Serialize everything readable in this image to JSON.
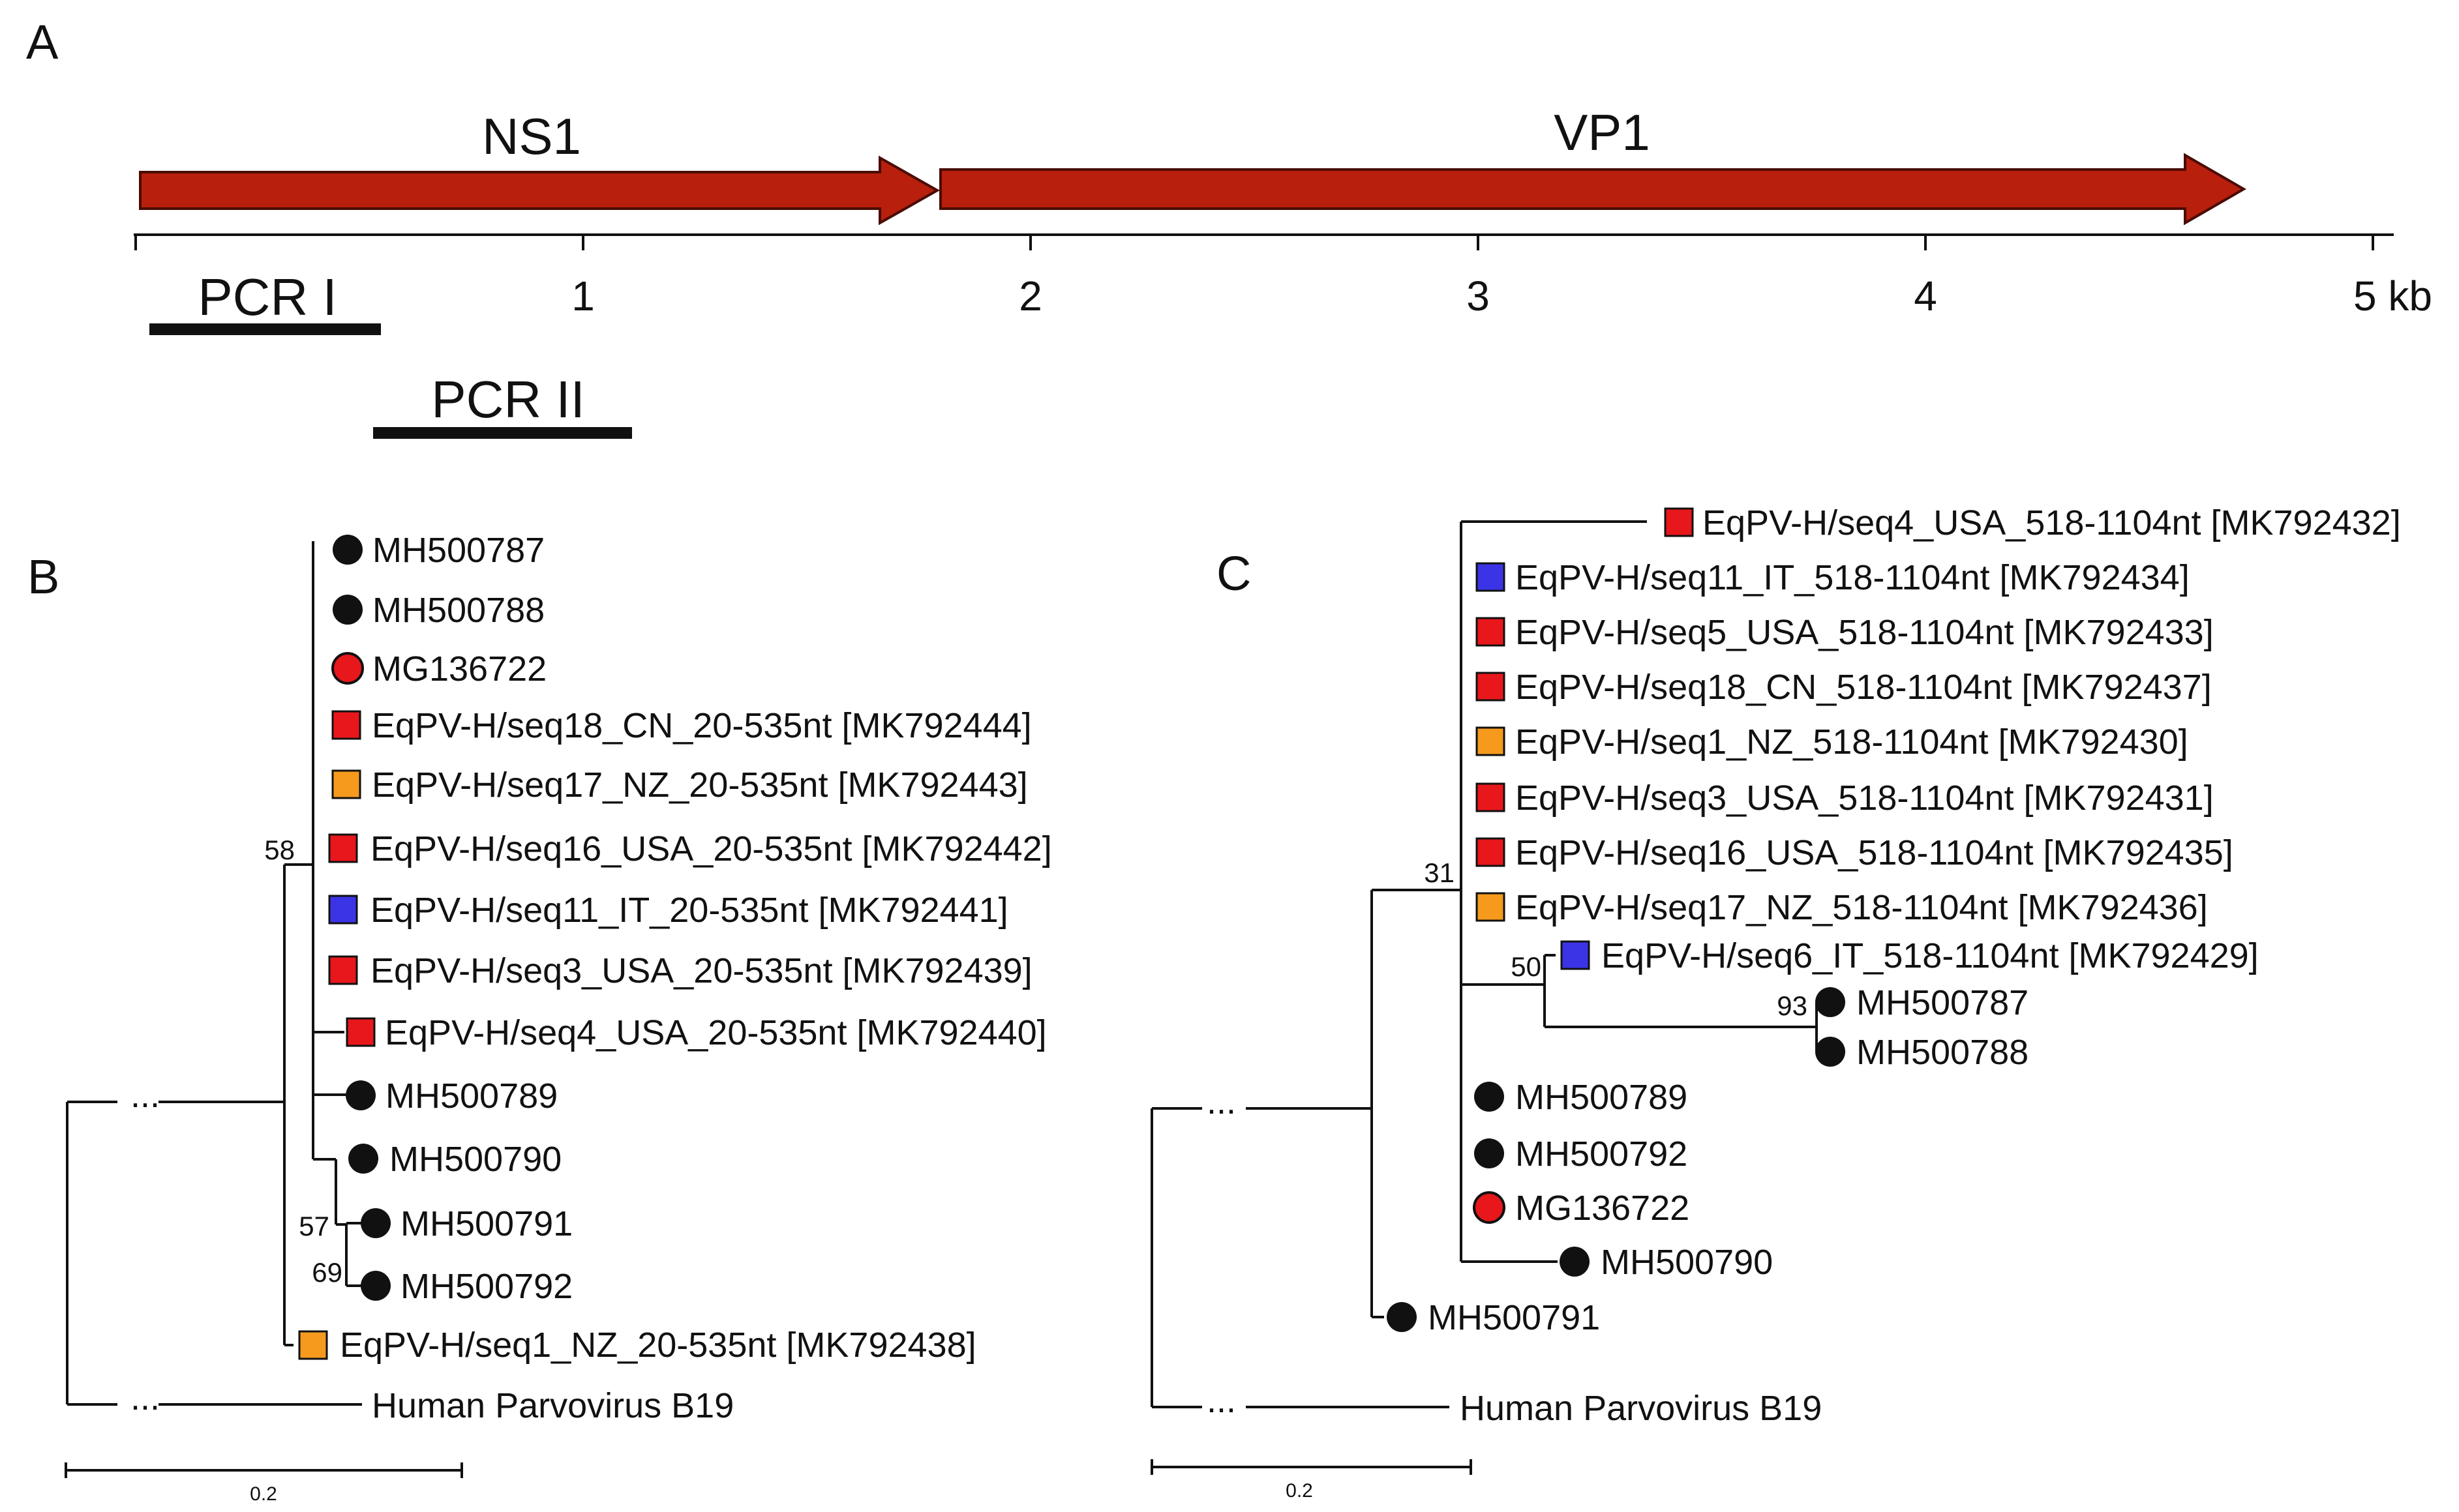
{
  "panels": {
    "a": "A",
    "b": "B",
    "c": "C"
  },
  "colors": {
    "gene": "#b81f0c",
    "red": "#e8171b",
    "orange": "#f59a1d",
    "blue": "#3b34e6",
    "black": "#111111"
  },
  "genome": {
    "genes": [
      {
        "label": "NS1",
        "start_kb": 0.02,
        "end_kb": 1.8
      },
      {
        "label": "VP1",
        "start_kb": 1.8,
        "end_kb": 4.75
      }
    ],
    "axis": {
      "min_kb": 0,
      "max_kb": 5,
      "tick_labels": [
        "1",
        "2",
        "3",
        "4",
        "5 kb"
      ]
    },
    "pcr": [
      {
        "label": "PCR I",
        "start_kb": 0.03,
        "end_kb": 0.55
      },
      {
        "label": "PCR II",
        "start_kb": 0.55,
        "end_kb": 1.1
      }
    ]
  },
  "tree_b": {
    "leaves": [
      {
        "label": "MH500787",
        "marker": "circle",
        "color": "#111111"
      },
      {
        "label": "MH500788",
        "marker": "circle",
        "color": "#111111"
      },
      {
        "label": "MG136722",
        "marker": "circle",
        "color": "#e8171b"
      },
      {
        "label": "EqPV-H/seq18_CN_20-535nt [MK792444]",
        "marker": "square",
        "color": "#e8171b"
      },
      {
        "label": "EqPV-H/seq17_NZ_20-535nt [MK792443]",
        "marker": "square",
        "color": "#f59a1d"
      },
      {
        "label": "EqPV-H/seq16_USA_20-535nt [MK792442]",
        "marker": "square",
        "color": "#e8171b"
      },
      {
        "label": "EqPV-H/seq11_IT_20-535nt [MK792441]",
        "marker": "square",
        "color": "#3b34e6"
      },
      {
        "label": "EqPV-H/seq3_USA_20-535nt [MK792439]",
        "marker": "square",
        "color": "#e8171b"
      },
      {
        "label": "EqPV-H/seq4_USA_20-535nt [MK792440]",
        "marker": "square",
        "color": "#e8171b"
      },
      {
        "label": "MH500789",
        "marker": "circle",
        "color": "#111111"
      },
      {
        "label": "MH500790",
        "marker": "circle",
        "color": "#111111"
      },
      {
        "label": "MH500791",
        "marker": "circle",
        "color": "#111111"
      },
      {
        "label": "MH500792",
        "marker": "circle",
        "color": "#111111"
      },
      {
        "label": "EqPV-H/seq1_NZ_20-535nt [MK792438]",
        "marker": "square",
        "color": "#f59a1d"
      },
      {
        "label": "Human Parvovirus B19",
        "marker": "none",
        "color": "#111111"
      }
    ],
    "bootstrap": [
      "58",
      "57",
      "69"
    ],
    "truncation_marks": [
      "...",
      "..."
    ],
    "scale_label": "0.2"
  },
  "tree_c": {
    "leaves": [
      {
        "label": "EqPV-H/seq4_USA_518-1104nt [MK792432]",
        "marker": "square",
        "color": "#e8171b"
      },
      {
        "label": "EqPV-H/seq11_IT_518-1104nt [MK792434]",
        "marker": "square",
        "color": "#3b34e6"
      },
      {
        "label": "EqPV-H/seq5_USA_518-1104nt [MK792433]",
        "marker": "square",
        "color": "#e8171b"
      },
      {
        "label": "EqPV-H/seq18_CN_518-1104nt [MK792437]",
        "marker": "square",
        "color": "#e8171b"
      },
      {
        "label": "EqPV-H/seq1_NZ_518-1104nt [MK792430]",
        "marker": "square",
        "color": "#f59a1d"
      },
      {
        "label": "EqPV-H/seq3_USA_518-1104nt [MK792431]",
        "marker": "square",
        "color": "#e8171b"
      },
      {
        "label": "EqPV-H/seq16_USA_518-1104nt [MK792435]",
        "marker": "square",
        "color": "#e8171b"
      },
      {
        "label": "EqPV-H/seq17_NZ_518-1104nt [MK792436]",
        "marker": "square",
        "color": "#f59a1d"
      },
      {
        "label": "EqPV-H/seq6_IT_518-1104nt [MK792429]",
        "marker": "square",
        "color": "#3b34e6"
      },
      {
        "label": "MH500787",
        "marker": "circle",
        "color": "#111111"
      },
      {
        "label": "MH500788",
        "marker": "circle",
        "color": "#111111"
      },
      {
        "label": "MH500789",
        "marker": "circle",
        "color": "#111111"
      },
      {
        "label": "MH500792",
        "marker": "circle",
        "color": "#111111"
      },
      {
        "label": "MG136722",
        "marker": "circle",
        "color": "#e8171b"
      },
      {
        "label": "MH500790",
        "marker": "circle",
        "color": "#111111"
      },
      {
        "label": "MH500791",
        "marker": "circle",
        "color": "#111111"
      },
      {
        "label": "Human Parvovirus B19",
        "marker": "none",
        "color": "#111111"
      }
    ],
    "bootstrap": [
      "31",
      "50",
      "93"
    ],
    "truncation_marks": [
      "...",
      "..."
    ],
    "scale_label": "0.2"
  }
}
